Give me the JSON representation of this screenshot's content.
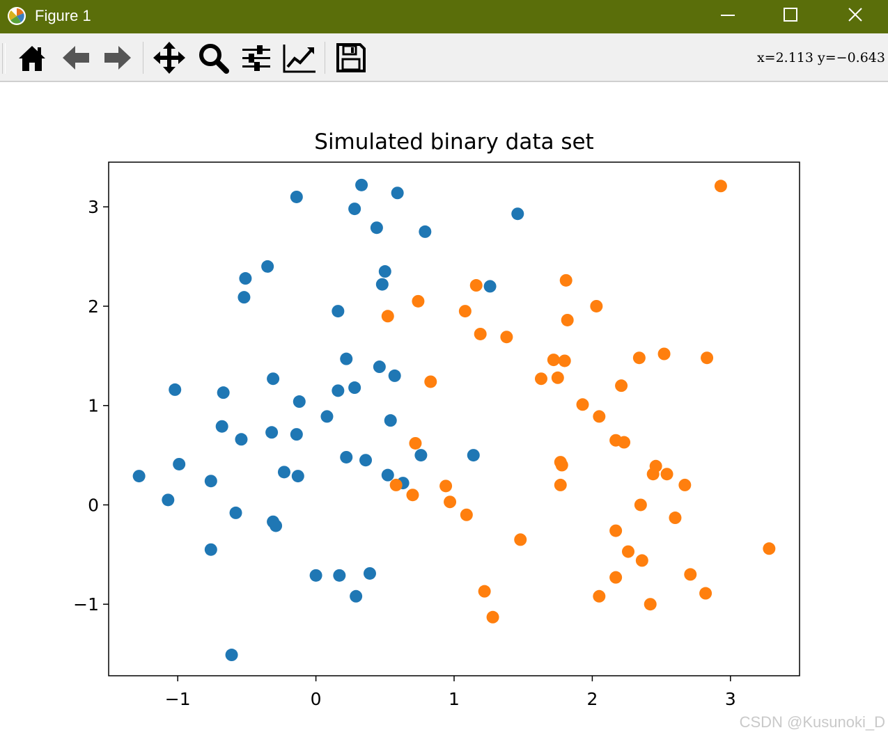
{
  "window": {
    "title": "Figure 1",
    "titlebar_color": "#5a6e0a"
  },
  "toolbar": {
    "buttons": [
      {
        "name": "home",
        "icon": "home-icon"
      },
      {
        "name": "back",
        "icon": "arrow-left-icon"
      },
      {
        "name": "forward",
        "icon": "arrow-right-icon"
      },
      {
        "name": "pan",
        "icon": "move-icon"
      },
      {
        "name": "zoom",
        "icon": "magnifier-icon"
      },
      {
        "name": "configure-subplots",
        "icon": "sliders-icon"
      },
      {
        "name": "edit-axis",
        "icon": "line-chart-icon"
      },
      {
        "name": "save",
        "icon": "floppy-disk-icon"
      }
    ],
    "coords_text": "x=2.113  y=−0.643"
  },
  "watermark": "CSDN @Kusunoki_D",
  "chart_data": {
    "type": "scatter",
    "title": "Simulated binary data set",
    "xlabel": "",
    "ylabel": "",
    "xlim": [
      -1.5,
      3.5
    ],
    "ylim": [
      -1.72,
      3.45
    ],
    "xticks": [
      -1,
      0,
      1,
      2,
      3
    ],
    "yticks": [
      -1,
      0,
      1,
      2,
      3
    ],
    "tick_labels_x": [
      "−1",
      "0",
      "1",
      "2",
      "3"
    ],
    "tick_labels_y": [
      "−1",
      "0",
      "1",
      "2",
      "3"
    ],
    "grid": false,
    "legend": "none",
    "series": [
      {
        "color": "#1f77b4",
        "points": [
          [
            -1.28,
            0.29
          ],
          [
            -1.07,
            0.05
          ],
          [
            -1.02,
            1.16
          ],
          [
            -0.99,
            0.41
          ],
          [
            -0.76,
            0.24
          ],
          [
            -0.76,
            -0.45
          ],
          [
            -0.68,
            0.79
          ],
          [
            -0.67,
            1.13
          ],
          [
            -0.61,
            -1.51
          ],
          [
            -0.58,
            -0.08
          ],
          [
            -0.54,
            0.66
          ],
          [
            -0.52,
            2.09
          ],
          [
            -0.51,
            2.28
          ],
          [
            -0.35,
            2.4
          ],
          [
            -0.32,
            0.73
          ],
          [
            -0.31,
            -0.17
          ],
          [
            -0.31,
            1.27
          ],
          [
            -0.29,
            -0.21
          ],
          [
            -0.23,
            0.33
          ],
          [
            -0.14,
            3.1
          ],
          [
            -0.14,
            0.71
          ],
          [
            -0.13,
            0.29
          ],
          [
            -0.12,
            1.04
          ],
          [
            0.0,
            -0.71
          ],
          [
            0.08,
            0.89
          ],
          [
            0.16,
            1.95
          ],
          [
            0.16,
            1.15
          ],
          [
            0.17,
            -0.71
          ],
          [
            0.22,
            1.47
          ],
          [
            0.22,
            0.48
          ],
          [
            0.28,
            1.18
          ],
          [
            0.28,
            2.98
          ],
          [
            0.29,
            -0.92
          ],
          [
            0.33,
            3.22
          ],
          [
            0.36,
            0.45
          ],
          [
            0.39,
            -0.69
          ],
          [
            0.44,
            2.79
          ],
          [
            0.46,
            1.39
          ],
          [
            0.48,
            2.22
          ],
          [
            0.5,
            2.35
          ],
          [
            0.52,
            0.3
          ],
          [
            0.54,
            0.85
          ],
          [
            0.57,
            1.3
          ],
          [
            0.59,
            3.14
          ],
          [
            0.63,
            0.22
          ],
          [
            0.76,
            0.5
          ],
          [
            0.79,
            2.75
          ],
          [
            1.14,
            0.5
          ],
          [
            1.26,
            2.2
          ],
          [
            1.46,
            2.93
          ]
        ]
      },
      {
        "color": "#ff7f0e",
        "points": [
          [
            0.52,
            1.9
          ],
          [
            0.58,
            0.2
          ],
          [
            0.7,
            0.1
          ],
          [
            0.72,
            0.62
          ],
          [
            0.74,
            2.05
          ],
          [
            0.83,
            1.24
          ],
          [
            0.94,
            0.19
          ],
          [
            0.97,
            0.03
          ],
          [
            1.08,
            1.95
          ],
          [
            1.09,
            -0.1
          ],
          [
            1.16,
            2.21
          ],
          [
            1.19,
            1.72
          ],
          [
            1.22,
            -0.87
          ],
          [
            1.28,
            -1.13
          ],
          [
            1.38,
            1.69
          ],
          [
            1.48,
            -0.35
          ],
          [
            1.63,
            1.27
          ],
          [
            1.72,
            1.46
          ],
          [
            1.75,
            1.28
          ],
          [
            1.77,
            0.43
          ],
          [
            1.77,
            0.2
          ],
          [
            1.78,
            0.4
          ],
          [
            1.8,
            1.45
          ],
          [
            1.81,
            2.26
          ],
          [
            1.82,
            1.86
          ],
          [
            1.93,
            1.01
          ],
          [
            2.03,
            2.0
          ],
          [
            2.05,
            0.89
          ],
          [
            2.05,
            -0.92
          ],
          [
            2.17,
            0.65
          ],
          [
            2.17,
            -0.26
          ],
          [
            2.17,
            -0.73
          ],
          [
            2.21,
            1.2
          ],
          [
            2.23,
            0.63
          ],
          [
            2.26,
            -0.47
          ],
          [
            2.34,
            1.48
          ],
          [
            2.35,
            0.0
          ],
          [
            2.36,
            -0.56
          ],
          [
            2.42,
            -1.0
          ],
          [
            2.44,
            0.31
          ],
          [
            2.46,
            0.39
          ],
          [
            2.52,
            1.52
          ],
          [
            2.54,
            0.31
          ],
          [
            2.6,
            -0.13
          ],
          [
            2.67,
            0.2
          ],
          [
            2.71,
            -0.7
          ],
          [
            2.82,
            -0.89
          ],
          [
            2.83,
            1.48
          ],
          [
            2.93,
            3.21
          ],
          [
            3.28,
            -0.44
          ]
        ]
      }
    ]
  }
}
